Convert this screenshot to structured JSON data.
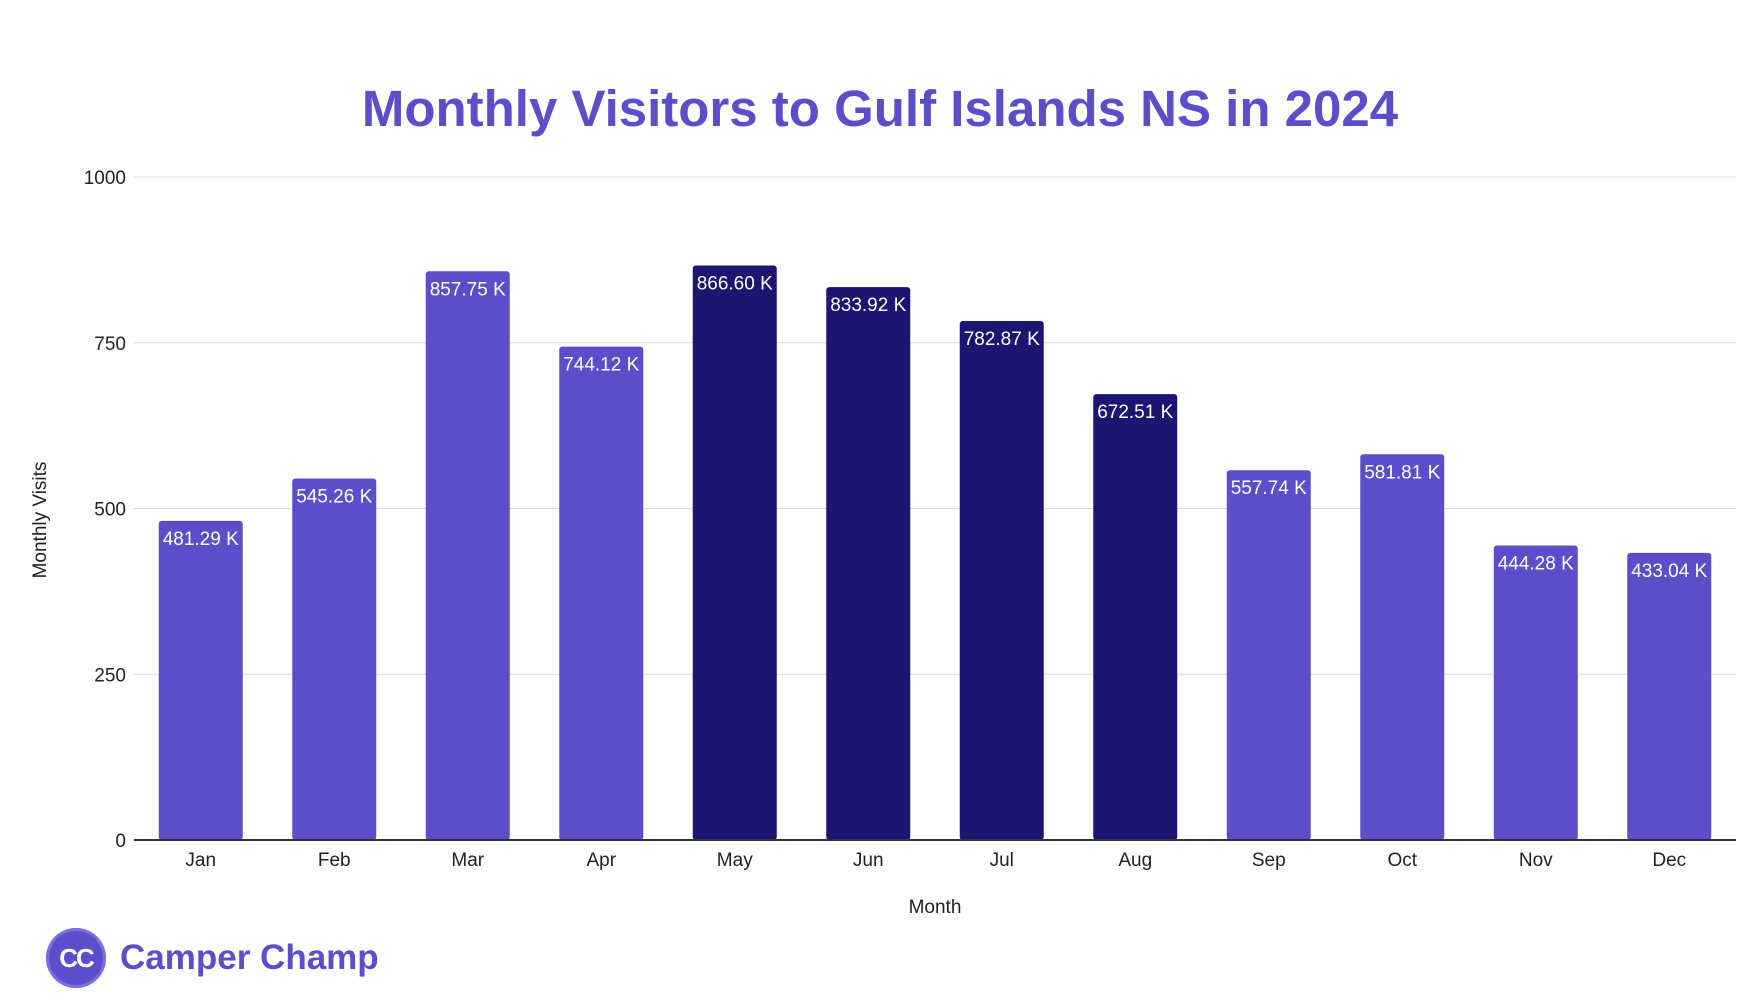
{
  "colors": {
    "background": "#ffffff",
    "title": "#5c4ecb",
    "bar_light": "#5c4ecb",
    "bar_dark": "#1c1572",
    "grid": "#d9d9d9",
    "axis": "#333333"
  },
  "brand": {
    "monogram": "CC",
    "name": "Camper Champ"
  },
  "chart_data": {
    "type": "bar",
    "title": "Monthly Visitors to Gulf Islands NS in 2024",
    "xlabel": "Month",
    "ylabel": "Monthly Visits",
    "categories": [
      "Jan",
      "Feb",
      "Mar",
      "Apr",
      "May",
      "Jun",
      "Jul",
      "Aug",
      "Sep",
      "Oct",
      "Nov",
      "Dec"
    ],
    "values": [
      481.29,
      545.26,
      857.75,
      744.12,
      866.6,
      833.92,
      782.87,
      672.51,
      557.74,
      581.81,
      444.28,
      433.04
    ],
    "data_labels": [
      "481.29 K",
      "545.26 K",
      "857.75 K",
      "744.12 K",
      "866.60 K",
      "833.92 K",
      "782.87 K",
      "672.51 K",
      "557.74 K",
      "581.81 K",
      "444.28 K",
      "433.04 K"
    ],
    "bar_colors": [
      "#5c4ecb",
      "#5c4ecb",
      "#5c4ecb",
      "#5c4ecb",
      "#1c1572",
      "#1c1572",
      "#1c1572",
      "#1c1572",
      "#5c4ecb",
      "#5c4ecb",
      "#5c4ecb",
      "#5c4ecb"
    ],
    "ylim": [
      0,
      1000
    ],
    "yticks": [
      0,
      250,
      500,
      750,
      1000
    ],
    "grid": true,
    "legend": "none"
  }
}
